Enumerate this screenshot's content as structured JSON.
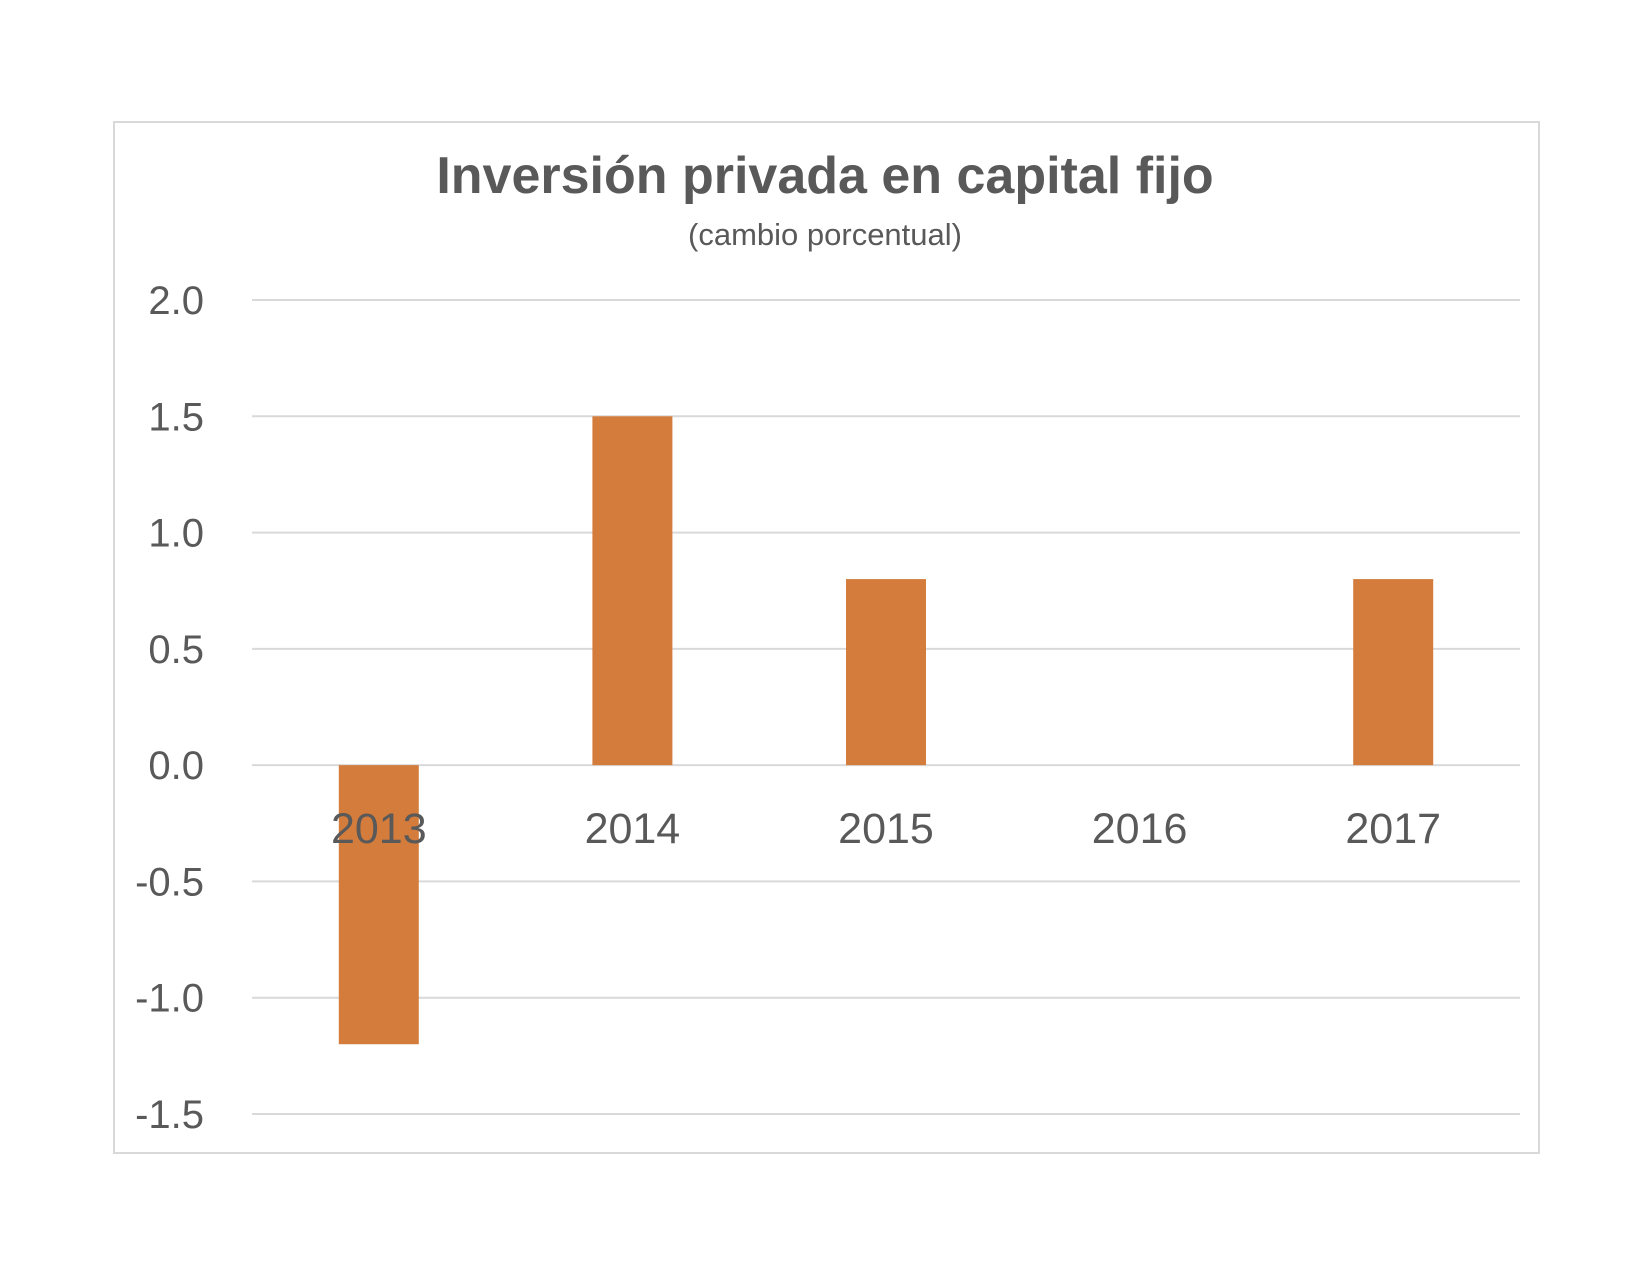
{
  "chart_data": {
    "type": "bar",
    "title": "Inversión privada en capital fijo",
    "subtitle": "(cambio porcentual)",
    "categories": [
      "2013",
      "2014",
      "2015",
      "2016",
      "2017"
    ],
    "values": [
      -1.2,
      1.5,
      0.8,
      0.0,
      0.8
    ],
    "ylim": [
      -1.5,
      2.0
    ],
    "yticks": [
      "2.0",
      "1.5",
      "1.0",
      "0.5",
      "0.0",
      "-0.5",
      "-1.0",
      "-1.5"
    ],
    "ytick_values": [
      2.0,
      1.5,
      1.0,
      0.5,
      0.0,
      -0.5,
      -1.0,
      -1.5
    ],
    "xlabel": "",
    "ylabel": "",
    "grid": true,
    "legend": "none",
    "colors": {
      "bar": "#D47C3C",
      "grid": "#d9d9d9",
      "text": "#595959",
      "frame": "#d9d9d9"
    }
  }
}
